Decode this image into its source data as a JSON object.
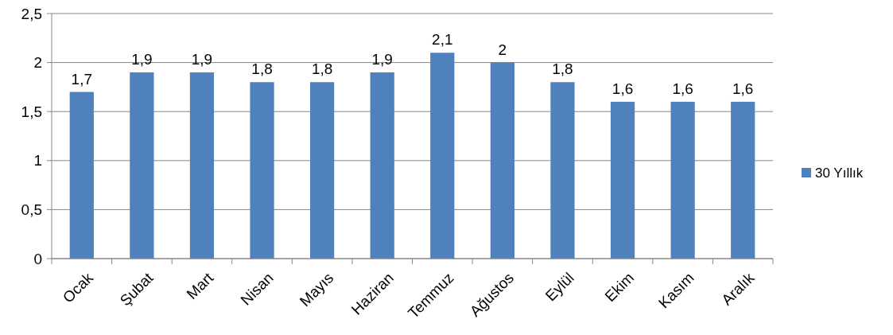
{
  "chart_data": {
    "type": "bar",
    "categories": [
      "Ocak",
      "Şubat",
      "Mart",
      "Nisan",
      "Mayıs",
      "Haziran",
      "Temmuz",
      "Ağustos",
      "Eylül",
      "Ekim",
      "Kasım",
      "Aralık"
    ],
    "series": [
      {
        "name": "30 Yıllık",
        "color": "#4f81bd",
        "values": [
          1.7,
          1.9,
          1.9,
          1.8,
          1.8,
          1.9,
          2.1,
          2,
          1.8,
          1.6,
          1.6,
          1.6
        ],
        "value_labels": [
          "1,7",
          "1,9",
          "1,9",
          "1,8",
          "1,8",
          "1,9",
          "2,1",
          "2",
          "1,8",
          "1,6",
          "1,6",
          "1,6"
        ]
      }
    ],
    "ylim": [
      0,
      2.5
    ],
    "yticks": [
      0,
      {
        "value": 0.5,
        "label": "0,5"
      },
      1,
      {
        "value": 1.5,
        "label": "1,5"
      },
      2,
      {
        "value": 2.5,
        "label": "2,5"
      }
    ],
    "grid": "y",
    "legend": "right"
  }
}
